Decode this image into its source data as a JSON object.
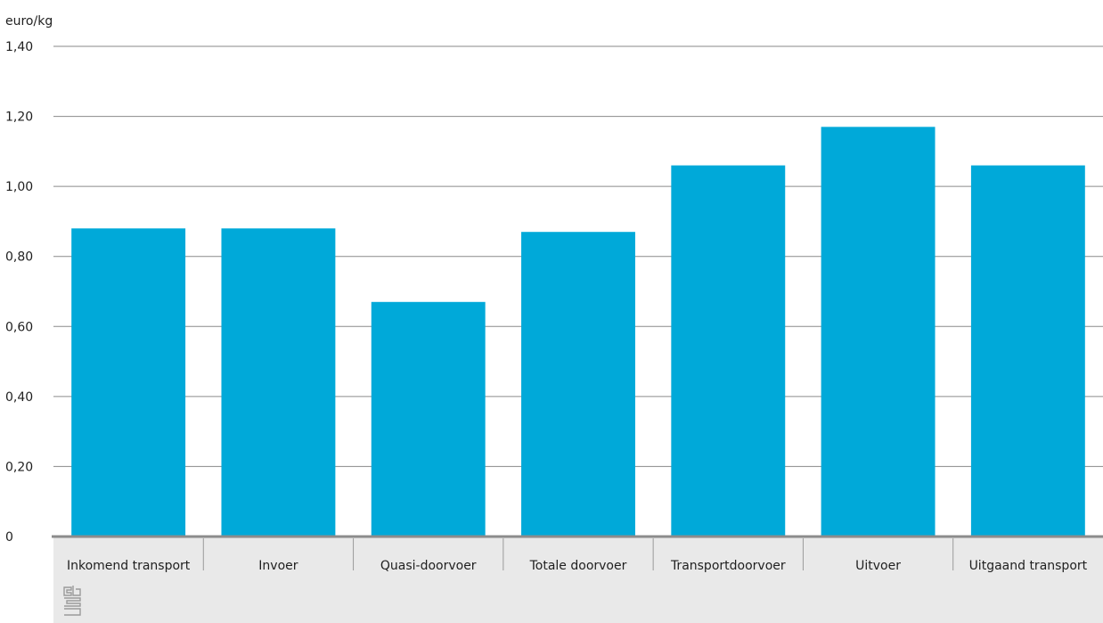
{
  "chart_data": {
    "type": "bar",
    "ylabel": "euro/kg",
    "ylim": [
      0,
      1.4
    ],
    "yticks": [
      "0",
      "0,20",
      "0,40",
      "0,60",
      "0,80",
      "1,00",
      "1,20",
      "1,40"
    ],
    "categories": [
      "Inkomend transport",
      "Invoer",
      "Quasi-doorvoer",
      "Totale doorvoer",
      "Transportdoorvoer",
      "Uitvoer",
      "Uitgaand transport"
    ],
    "values": [
      0.88,
      0.88,
      0.67,
      0.87,
      1.06,
      1.17,
      1.06
    ],
    "bar_color": "#00a9d9",
    "grid": true,
    "logo": "cbs-logo-icon"
  }
}
